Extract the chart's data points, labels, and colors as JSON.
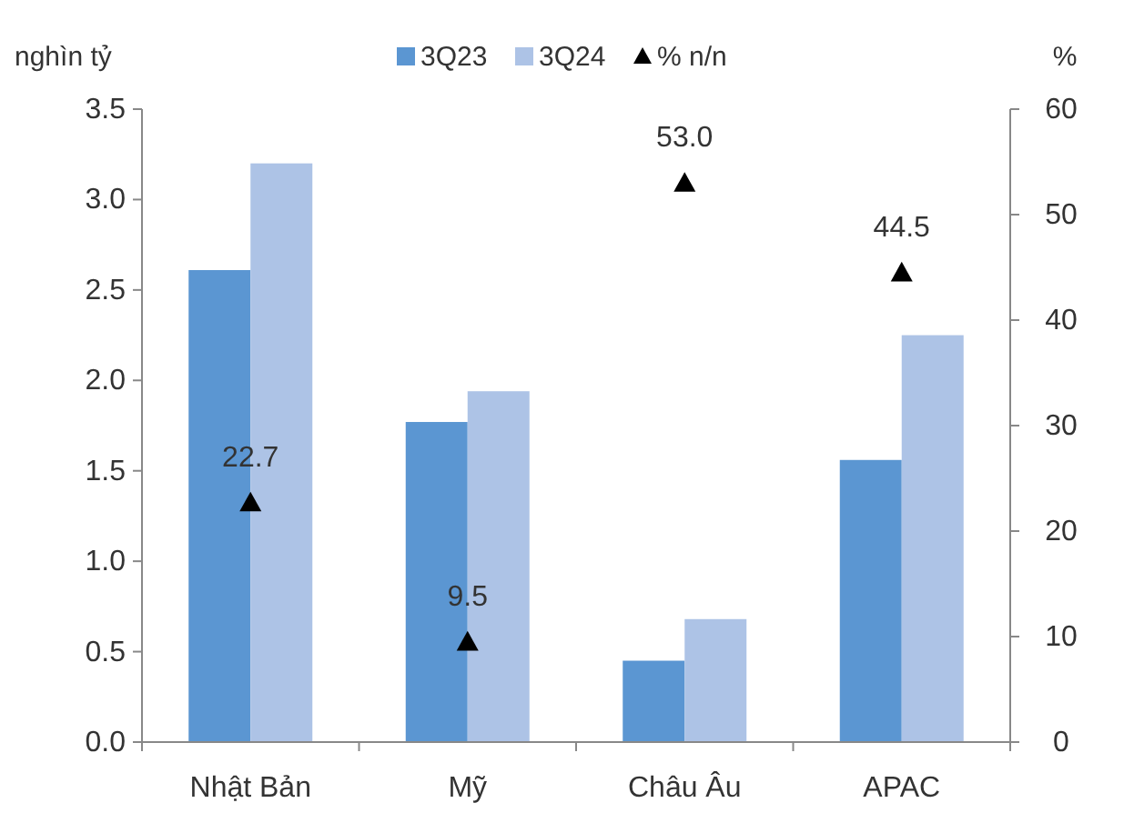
{
  "chart_data": {
    "type": "bar",
    "ylabel": "nghìn tỷ",
    "y2label": "%",
    "categories": [
      "Nhật Bản",
      "Mỹ",
      "Châu Âu",
      "APAC"
    ],
    "series": [
      {
        "name": "3Q23",
        "color": "#5b96d2",
        "values": [
          2.61,
          1.77,
          0.45,
          1.56
        ]
      },
      {
        "name": "3Q24",
        "color": "#adc3e6",
        "values": [
          3.2,
          1.94,
          0.68,
          2.25
        ]
      },
      {
        "name": "% n/n",
        "type": "scatter",
        "axis": "y2",
        "marker": "triangle",
        "color": "#000000",
        "values": [
          22.7,
          9.5,
          53.0,
          44.5
        ],
        "value_labels": [
          "22.7",
          "9.5",
          "53.0",
          "44.5"
        ]
      }
    ],
    "ylim": [
      0,
      3.5
    ],
    "yticks": [
      {
        "value": 0,
        "label": "0.0"
      },
      {
        "value": 0.5,
        "label": "0.5"
      },
      {
        "value": 1,
        "label": "1.0"
      },
      {
        "value": 1.5,
        "label": "1.5"
      },
      {
        "value": 2,
        "label": "2.0"
      },
      {
        "value": 2.5,
        "label": "2.5"
      },
      {
        "value": 3,
        "label": "3.0"
      },
      {
        "value": 3.5,
        "label": "3.5"
      }
    ],
    "y2lim": [
      0,
      60
    ],
    "y2ticks": [
      0,
      10,
      20,
      30,
      40,
      50,
      60
    ],
    "legend": "top",
    "grid": false
  }
}
